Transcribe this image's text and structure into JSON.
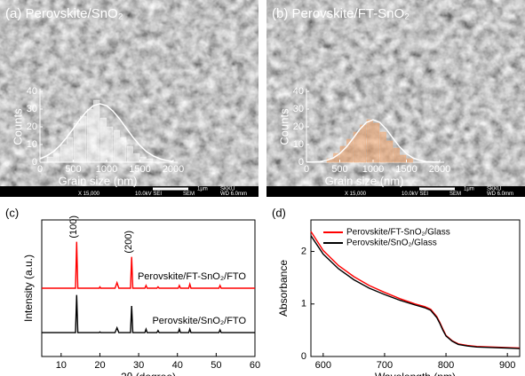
{
  "chart_data": [
    {
      "type": "histogram",
      "title": "(a) Perovskite/SnO₂",
      "xlabel": "Grain size (nm)",
      "ylabel": "Counts",
      "bins": [
        100,
        200,
        300,
        400,
        500,
        600,
        700,
        800,
        900,
        1000,
        1100,
        1200,
        1300,
        1400,
        1500,
        1600,
        1700
      ],
      "values": [
        3,
        5,
        10,
        14,
        22,
        26,
        30,
        35,
        25,
        20,
        18,
        14,
        9,
        5,
        3,
        2
      ],
      "color": "#ffffff",
      "fit": {
        "x": [
          0,
          100,
          200,
          300,
          400,
          500,
          600,
          700,
          800,
          900,
          1000,
          1100,
          1200,
          1300,
          1400,
          1500,
          1600,
          1700,
          1800,
          1900,
          2000
        ],
        "values": [
          2.0,
          3.6,
          6.0,
          9.5,
          13.9,
          19.0,
          24.2,
          28.7,
          31.9,
          33,
          31.9,
          28.7,
          24.2,
          19.0,
          13.9,
          9.5,
          6.0,
          3.6,
          2.0,
          1.0,
          0.5
        ]
      },
      "xlim": [
        0,
        2000
      ],
      "xticks": [
        0,
        500,
        1000,
        1500,
        2000
      ],
      "ylim": [
        0,
        40
      ],
      "yticks": [
        0,
        10,
        20,
        30,
        40
      ],
      "scale_bar": "1μm",
      "lab": "SKKU",
      "info": [
        "X 15,000",
        "10.0kV SEI",
        "SEM",
        "WD 6.0mm"
      ]
    },
    {
      "type": "histogram",
      "title": "(b) Perovskite/FT-SnO₂",
      "xlabel": "Grain size (nm)",
      "ylabel": "Counts",
      "bins": [
        300,
        400,
        500,
        600,
        700,
        800,
        900,
        1000,
        1100,
        1200,
        1300,
        1400,
        1500,
        1600
      ],
      "values": [
        2,
        5,
        9,
        13,
        17,
        21,
        24,
        22,
        17,
        12,
        8,
        4,
        2
      ],
      "color": "#f4a46a",
      "fit": {
        "x": [
          0,
          100,
          200,
          300,
          400,
          500,
          600,
          700,
          800,
          900,
          1000,
          1100,
          1200,
          1300,
          1400,
          1500,
          1600,
          1700,
          1800,
          1900,
          2000
        ],
        "values": [
          0.1,
          0.2,
          0.4,
          1.1,
          2.4,
          4.9,
          8.6,
          13.5,
          18.6,
          22.5,
          24,
          22.5,
          18.6,
          13.5,
          8.6,
          4.9,
          2.4,
          1.1,
          0.4,
          0.2,
          0.1
        ]
      },
      "xlim": [
        0,
        2000
      ],
      "xticks": [
        0,
        500,
        1000,
        1500,
        2000
      ],
      "ylim": [
        0,
        40
      ],
      "yticks": [
        0,
        10,
        20,
        30,
        40
      ],
      "scale_bar": "1μm",
      "lab": "SKKU",
      "info": [
        "X 15,000",
        "10.0kV SEI",
        "SEM",
        "WD 6.0mm"
      ]
    },
    {
      "type": "line",
      "title": "(c)",
      "xlabel": "2θ (degree)",
      "ylabel": "Intensity (a.u.)",
      "legend": "inline",
      "x": [
        5,
        13.7,
        14.0,
        14.3,
        19.8,
        20.0,
        20.2,
        23.9,
        24.4,
        24.9,
        27.9,
        28.2,
        28.5,
        31.6,
        31.9,
        32.2,
        34.7,
        35.0,
        35.3,
        40.2,
        40.5,
        40.8,
        42.9,
        43.2,
        43.5,
        50.7,
        51.0,
        51.3,
        60
      ],
      "series": [
        {
          "name": "Perovskite/FT-SnO₂/FTO",
          "color": "#ff0000",
          "values": [
            0.5,
            0.5,
            0.84,
            0.5,
            0.5,
            0.51,
            0.5,
            0.5,
            0.54,
            0.5,
            0.5,
            0.73,
            0.5,
            0.5,
            0.52,
            0.5,
            0.5,
            0.51,
            0.5,
            0.5,
            0.52,
            0.5,
            0.5,
            0.53,
            0.5,
            0.5,
            0.52,
            0.5,
            0.5
          ]
        },
        {
          "name": "Perovskite/SnO₂/FTO",
          "color": "#000000",
          "values": [
            0.175,
            0.175,
            0.45,
            0.175,
            0.175,
            0.18,
            0.175,
            0.175,
            0.21,
            0.175,
            0.175,
            0.37,
            0.175,
            0.175,
            0.2,
            0.175,
            0.175,
            0.19,
            0.175,
            0.175,
            0.2,
            0.175,
            0.175,
            0.2,
            0.175,
            0.175,
            0.195,
            0.175,
            0.175
          ]
        }
      ],
      "annotations": [
        {
          "text": "(100)",
          "x": 14.0
        },
        {
          "text": "(200)",
          "x": 28.2
        }
      ],
      "xlim": [
        5,
        60
      ],
      "xticks": [
        10,
        20,
        30,
        40,
        50,
        60
      ],
      "ylim": [
        0,
        1
      ]
    },
    {
      "type": "line",
      "title": "(d)",
      "xlabel": "Wavelength (nm)",
      "ylabel": "Absorbance",
      "legend": "upper left",
      "x": [
        580,
        600,
        625,
        650,
        675,
        700,
        725,
        750,
        765,
        775,
        785,
        790,
        795,
        800,
        810,
        820,
        835,
        850,
        875,
        900,
        920
      ],
      "series": [
        {
          "name": "Perovskite/FT-SnO₂/Glass",
          "color": "#ff0000",
          "values": [
            2.38,
            2.02,
            1.73,
            1.52,
            1.35,
            1.22,
            1.1,
            1.0,
            0.95,
            0.9,
            0.76,
            0.65,
            0.52,
            0.4,
            0.3,
            0.24,
            0.21,
            0.19,
            0.18,
            0.17,
            0.16
          ]
        },
        {
          "name": "Perovskite/SnO₂/Glass",
          "color": "#000000",
          "values": [
            2.3,
            1.95,
            1.67,
            1.46,
            1.3,
            1.18,
            1.07,
            0.98,
            0.93,
            0.88,
            0.74,
            0.63,
            0.5,
            0.39,
            0.29,
            0.23,
            0.2,
            0.18,
            0.17,
            0.16,
            0.15
          ]
        }
      ],
      "xlim": [
        580,
        920
      ],
      "xticks": [
        600,
        700,
        800,
        900
      ],
      "ylim": [
        0,
        2.6
      ],
      "yticks": [
        0,
        1,
        2
      ]
    }
  ]
}
